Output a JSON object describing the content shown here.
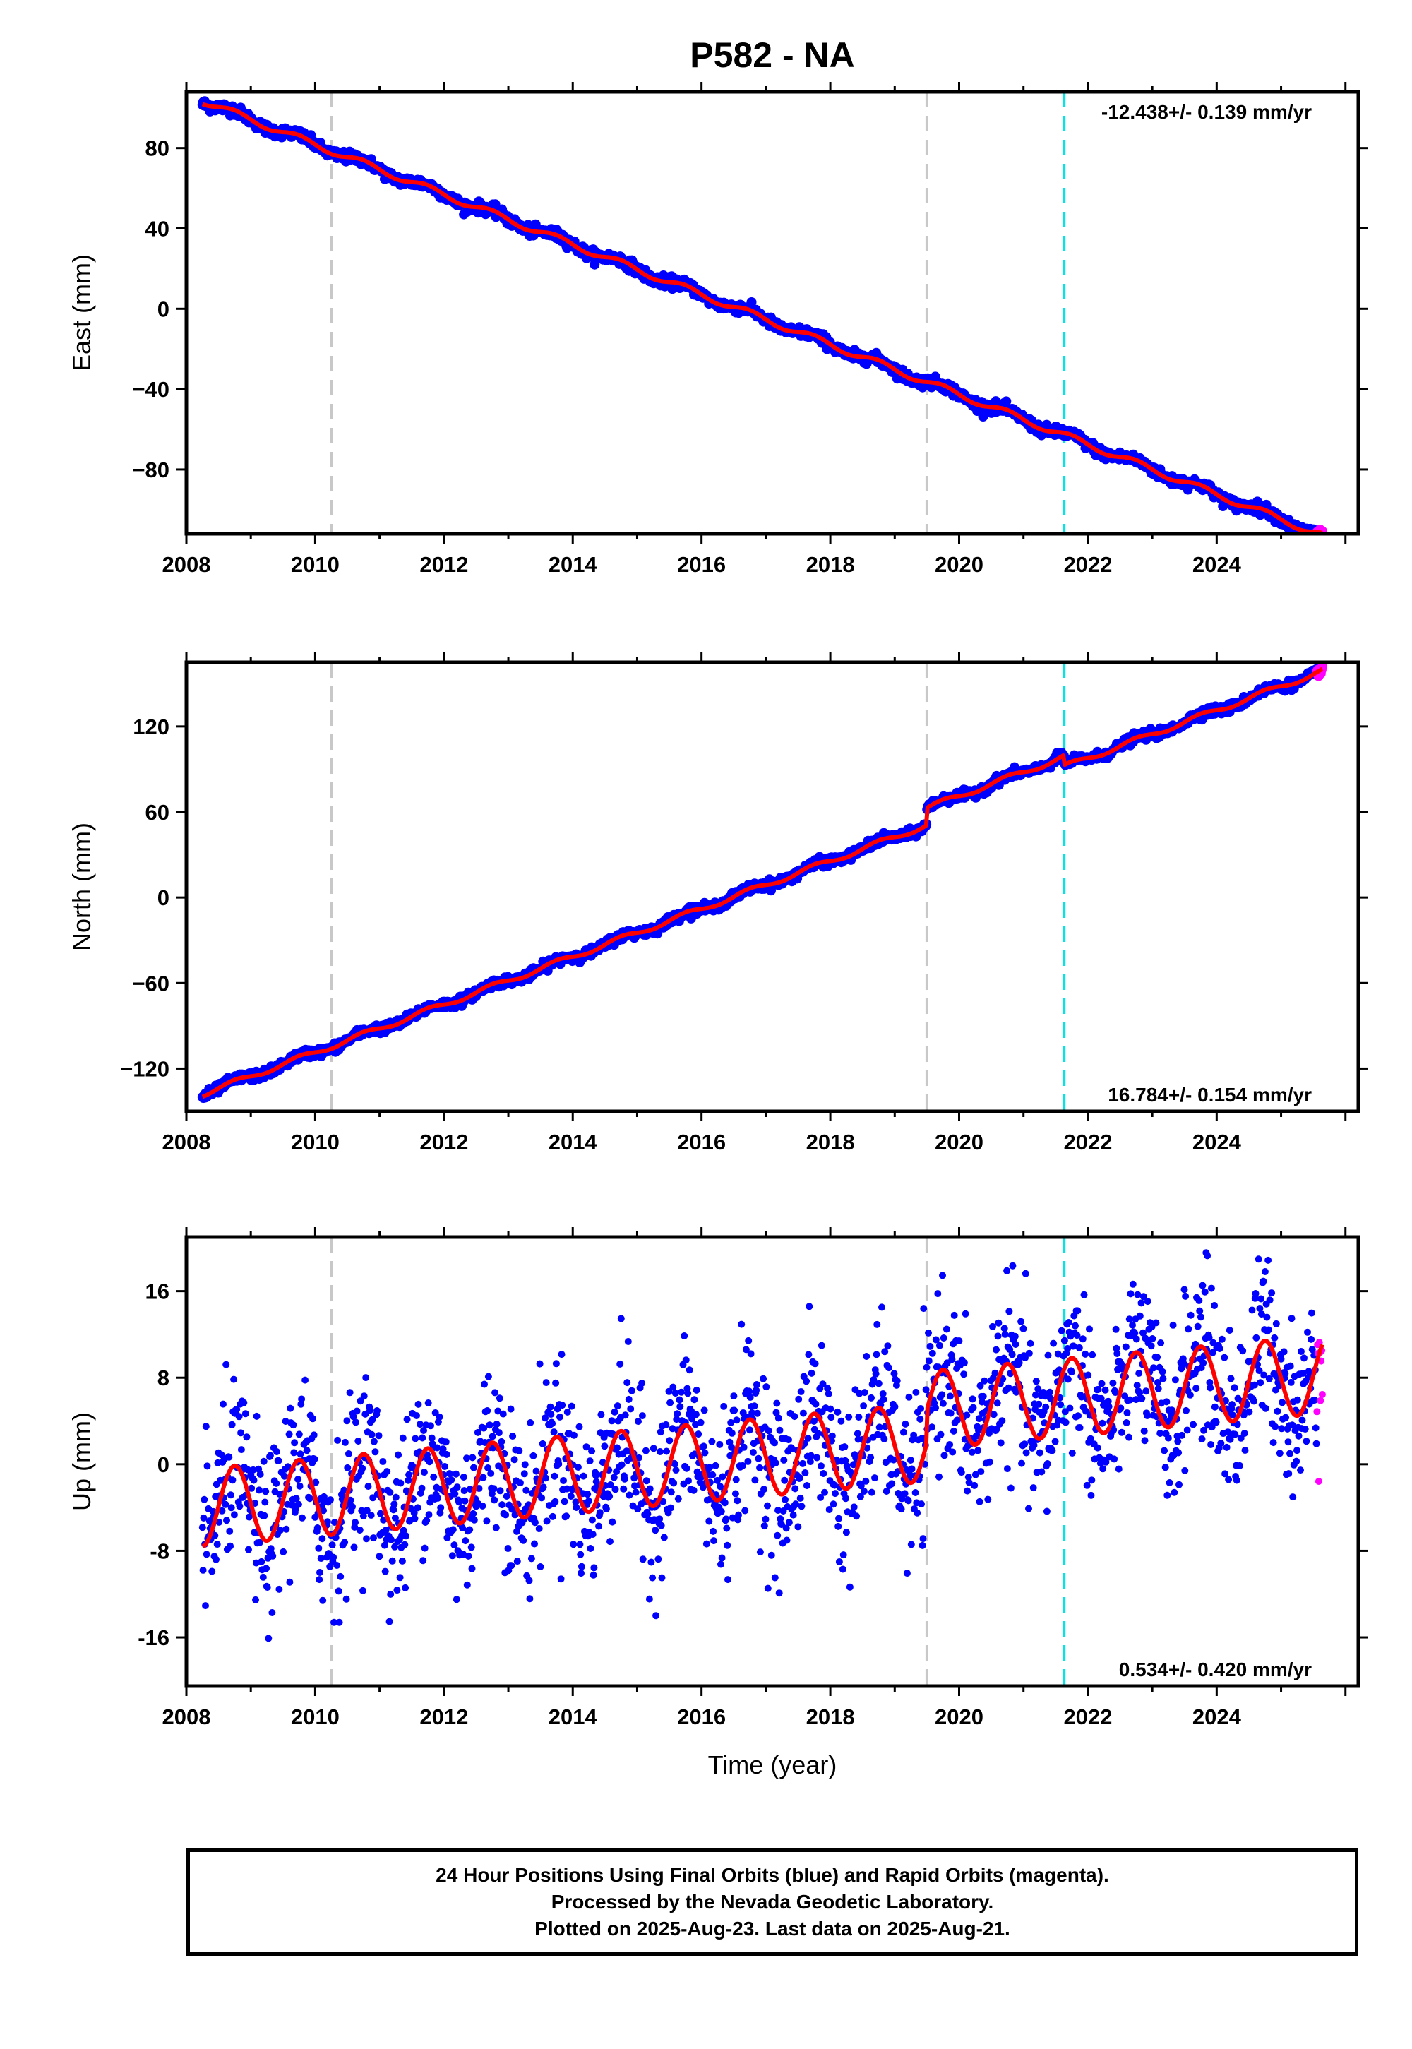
{
  "colors": {
    "final_orbits": "#0000ff",
    "rapid_orbits": "#ff00ff",
    "model": "#ff0000",
    "equipment_change": "#c8c8c8",
    "earthquake": "#00e5e5",
    "frame": "#000000"
  },
  "chart_data": {
    "type": "scatter",
    "title": "P582 - NA",
    "xlabel": "Time (year)",
    "x_range": [
      2008.0,
      2026.2
    ],
    "x_ticks": [
      2008,
      2010,
      2012,
      2014,
      2016,
      2018,
      2020,
      2022,
      2024
    ],
    "data_start": 2008.25,
    "data_end": 2025.64,
    "rapid_start": 2025.55,
    "vertical_lines": {
      "gray_dashed": [
        2010.25,
        2019.5
      ],
      "cyan_dashed": [
        2021.63
      ]
    },
    "panels": [
      {
        "name": "east",
        "ylabel": "East (mm)",
        "ylim": [
          -112,
          108
        ],
        "y_ticks": [
          -80,
          -40,
          0,
          40,
          80
        ],
        "y_tick_labels": [
          "−80",
          "−40",
          "0",
          "40",
          "80"
        ],
        "rate_text": "-12.438+/- 0.139 mm/yr",
        "rate_position": "top-right",
        "trend_mm_per_yr": -12.438,
        "offset_at_start": 103.5,
        "annual_amp_mm": 1.6,
        "noise_mm": 1.3,
        "steps": []
      },
      {
        "name": "north",
        "ylabel": "North (mm)",
        "ylim": [
          -150,
          165
        ],
        "y_ticks": [
          -120,
          -60,
          0,
          60,
          120
        ],
        "y_tick_labels": [
          "−120",
          "−60",
          "0",
          "60",
          "120"
        ],
        "rate_text": "16.784+/- 0.154 mm/yr",
        "rate_position": "bottom-right",
        "trend_mm_per_yr": 16.784,
        "offset_at_start": -138,
        "annual_amp_mm": 1.8,
        "noise_mm": 1.5,
        "steps": [
          [
            2019.5,
            12
          ],
          [
            2021.63,
            -7
          ]
        ]
      },
      {
        "name": "up",
        "ylabel": "Up (mm)",
        "ylim": [
          -20.5,
          21
        ],
        "y_ticks": [
          -16,
          -8,
          0,
          8,
          16
        ],
        "y_tick_labels": [
          "-16",
          "-8",
          "0",
          "8",
          "16"
        ],
        "rate_text": "0.534+/- 0.420 mm/yr",
        "rate_position": "bottom-right",
        "trend_mm_per_yr": 0.534,
        "offset_at_start": -4.0,
        "annual_amp_mm": 3.6,
        "noise_mm": 3.8,
        "steps": [
          [
            2019.5,
            3.0
          ]
        ]
      }
    ]
  },
  "footer": {
    "line1": "24 Hour Positions Using Final Orbits (blue) and Rapid Orbits (magenta).",
    "line2": "Processed by the Nevada Geodetic Laboratory.",
    "line3": "Plotted on 2025-Aug-23. Last data on 2025-Aug-21."
  }
}
